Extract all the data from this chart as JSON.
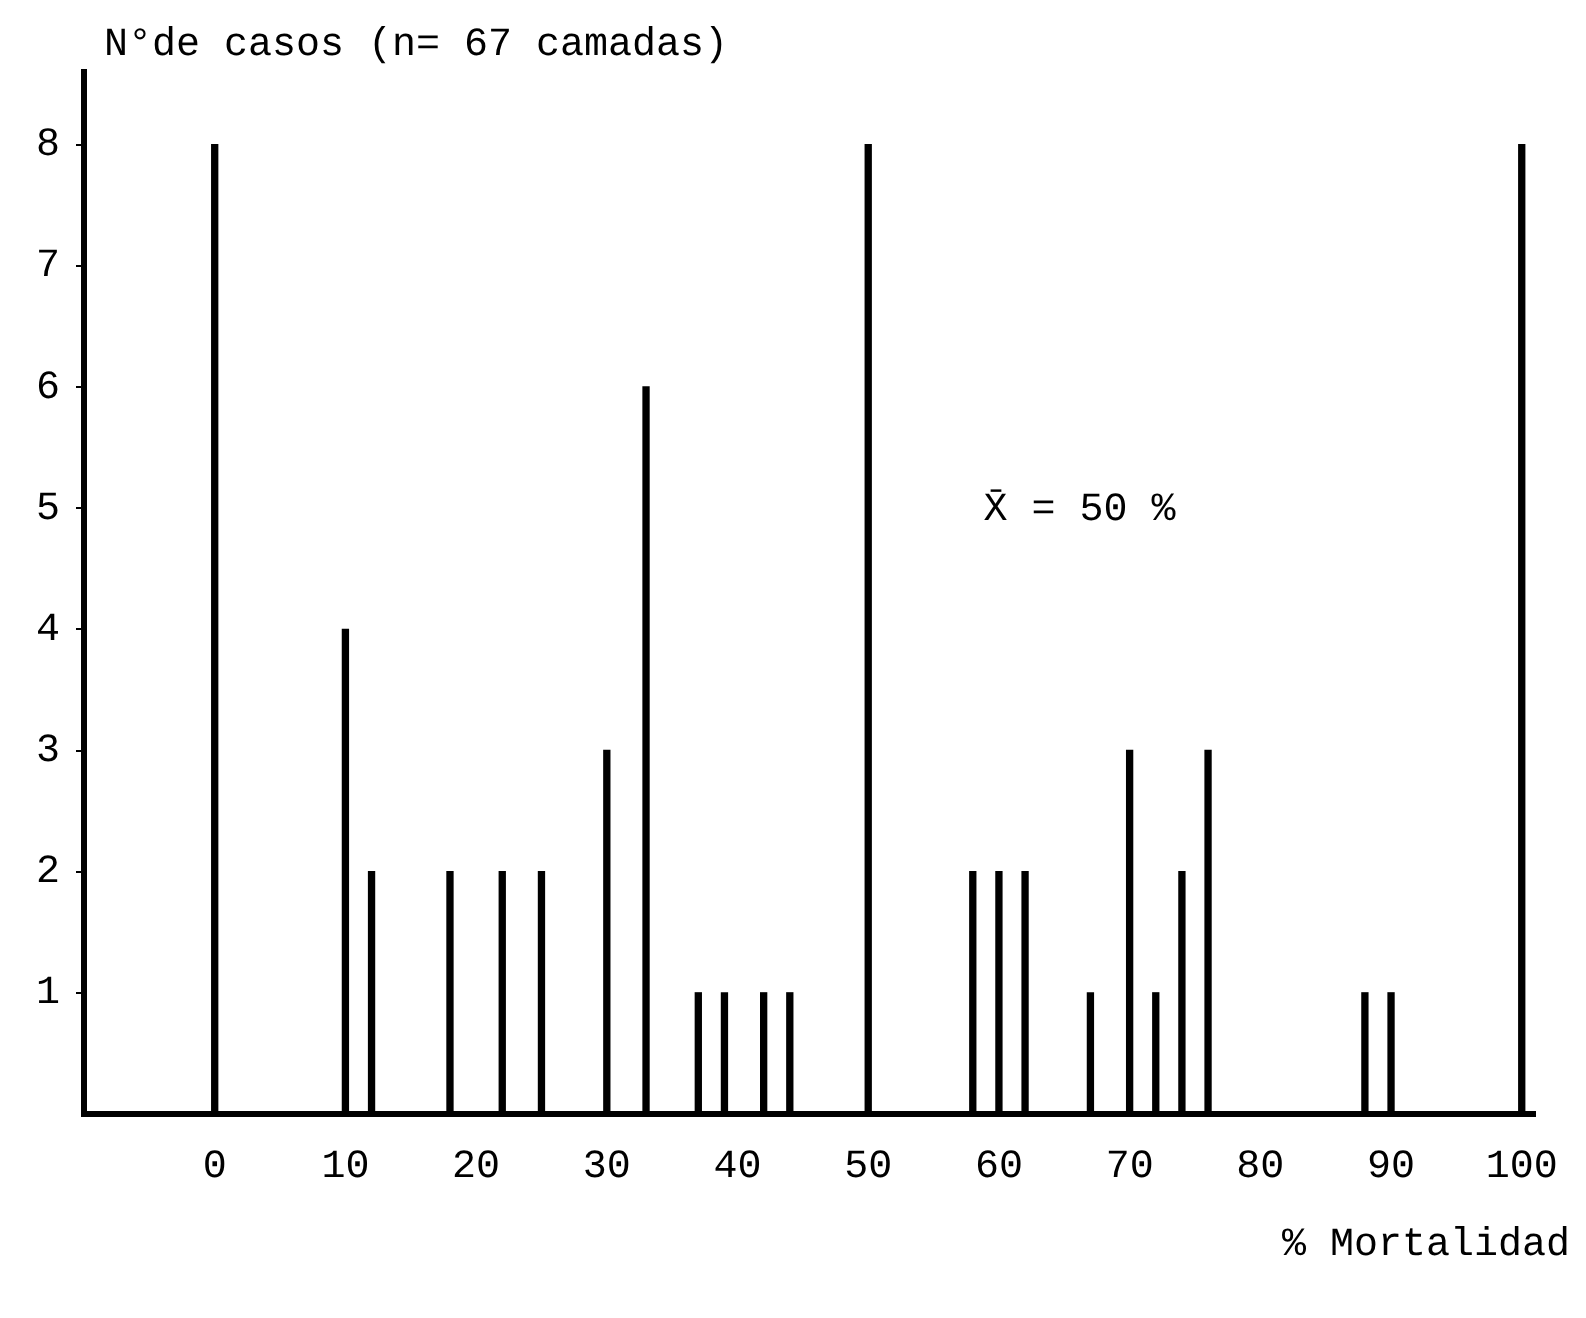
{
  "chart_data": {
    "type": "bar",
    "ylabel": "N°de casos (n= 67 camadas)",
    "xlabel": "% Mortalidad",
    "x": [
      0,
      10,
      12,
      18,
      22,
      25,
      30,
      33,
      37,
      39,
      42,
      44,
      50,
      58,
      60,
      62,
      67,
      70,
      72,
      74,
      76,
      88,
      90,
      100
    ],
    "values": [
      8,
      4,
      2,
      2,
      2,
      2,
      3,
      6,
      1,
      1,
      1,
      1,
      8,
      2,
      2,
      2,
      1,
      3,
      1,
      2,
      3,
      1,
      1,
      8
    ],
    "color": "#000000",
    "xlim": [
      -10,
      101
    ],
    "xticks": [
      0,
      10,
      20,
      30,
      40,
      50,
      60,
      70,
      80,
      90,
      100
    ],
    "ylim": [
      0,
      8.6
    ],
    "yticks": [
      1,
      2,
      3,
      4,
      5,
      6,
      7,
      8
    ],
    "annotations": [
      "X̄ = 50 %"
    ],
    "grid": false,
    "legend": false
  }
}
